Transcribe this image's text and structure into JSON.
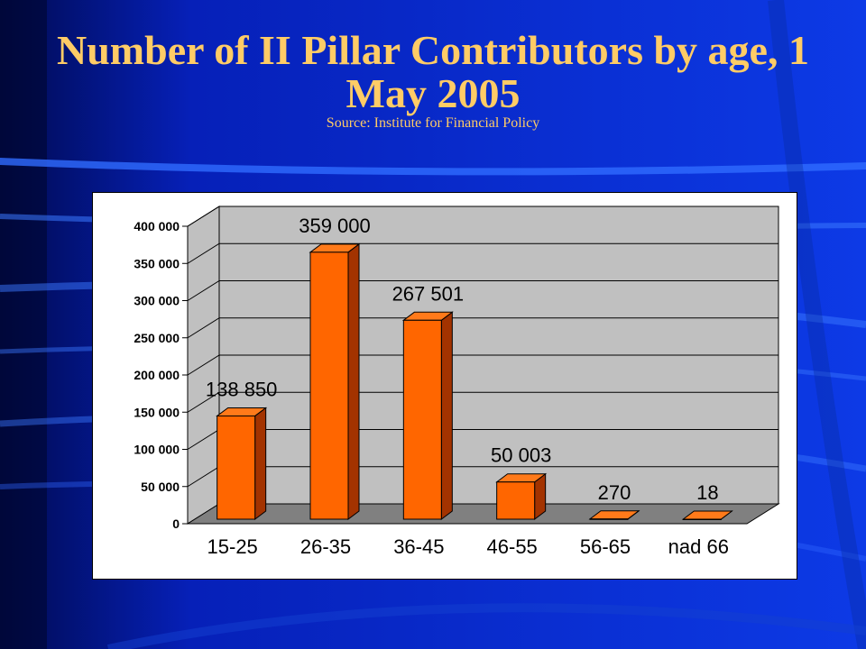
{
  "slide": {
    "title": "Number of II Pillar Contributors by age, 1 May 2005",
    "source": "Source: Institute for Financial Policy"
  },
  "colors": {
    "background": "#0a2fd8",
    "title": "#ffcc66",
    "bar_front": "#ff6600",
    "bar_side": "#a33300",
    "bar_top": "#ff7a1a",
    "plot_wall": "#c0c0c0",
    "plot_floor": "#808080"
  },
  "chart_data": {
    "type": "bar",
    "categories": [
      "15-25",
      "26-35",
      "36-45",
      "46-55",
      "56-65",
      "nad 66"
    ],
    "values": [
      138850,
      359000,
      267501,
      50003,
      270,
      18
    ],
    "data_labels": [
      "138 850",
      "359 000",
      "267 501",
      "50 003",
      "270",
      "18"
    ],
    "ylim": [
      0,
      400000
    ],
    "yticks": [
      0,
      50000,
      100000,
      150000,
      200000,
      250000,
      300000,
      350000,
      400000
    ],
    "ytick_labels": [
      "0",
      "50 000",
      "100 000",
      "150 000",
      "200 000",
      "250 000",
      "300 000",
      "350 000",
      "400 000"
    ],
    "grid": true,
    "style": "3d"
  }
}
